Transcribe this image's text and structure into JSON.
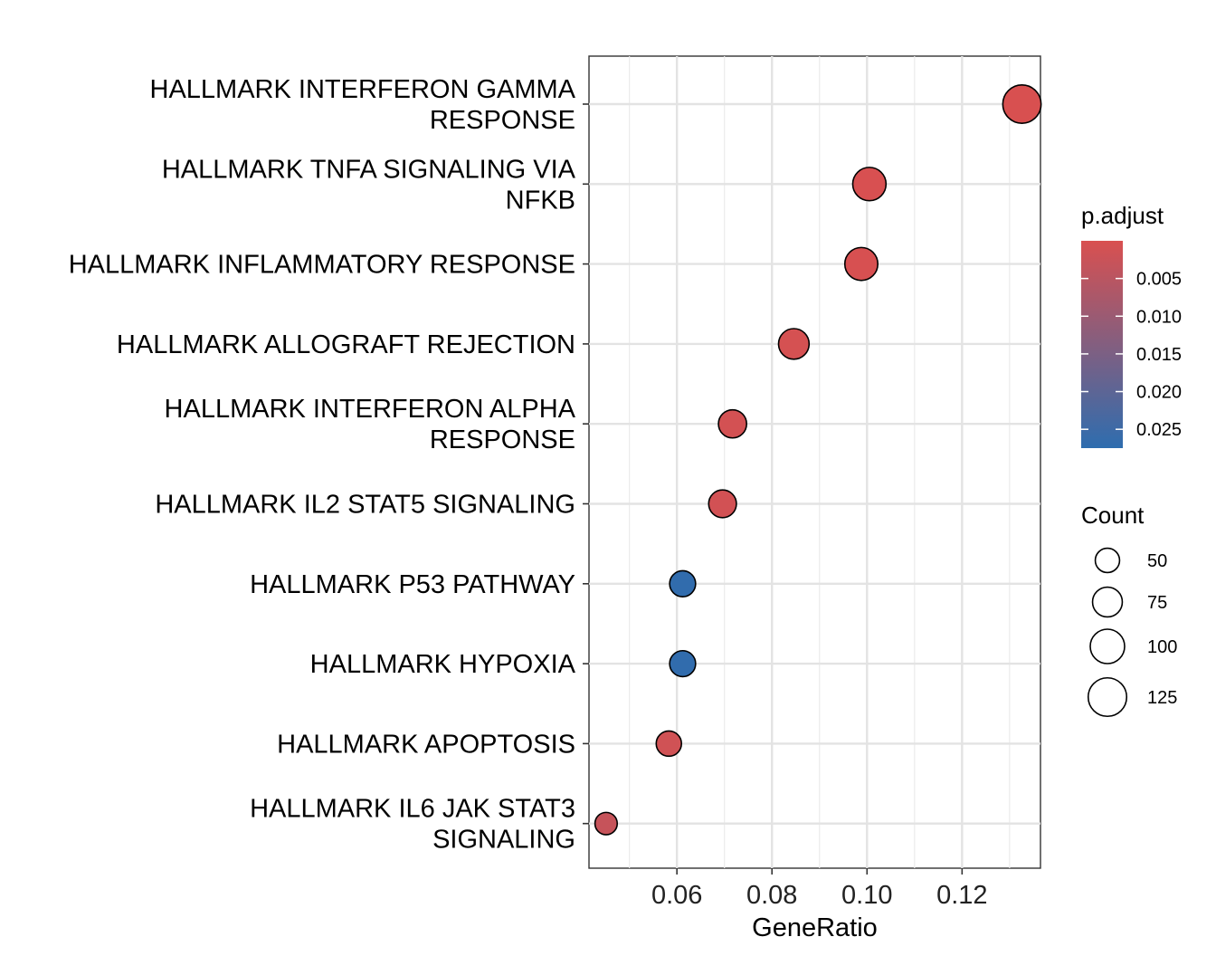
{
  "chart_data": {
    "type": "scatter",
    "subtype": "dot-plot",
    "title": "",
    "xlabel": "GeneRatio",
    "ylabel": "",
    "xlim": [
      0.0415,
      0.1365
    ],
    "xticks": [
      0.06,
      0.08,
      0.1,
      0.12
    ],
    "xtick_labels": [
      "0.06",
      "0.08",
      "0.10",
      "0.12"
    ],
    "grid": true,
    "categories": [
      [
        "HALLMARK INTERFERON GAMMA",
        "RESPONSE"
      ],
      [
        "HALLMARK TNFA SIGNALING VIA",
        "NFKB"
      ],
      [
        "HALLMARK INFLAMMATORY RESPONSE"
      ],
      [
        "HALLMARK ALLOGRAFT REJECTION"
      ],
      [
        "HALLMARK INTERFERON ALPHA",
        "RESPONSE"
      ],
      [
        "HALLMARK IL2 STAT5 SIGNALING"
      ],
      [
        "HALLMARK P53 PATHWAY"
      ],
      [
        "HALLMARK HYPOXIA"
      ],
      [
        "HALLMARK APOPTOSIS"
      ],
      [
        "HALLMARK IL6 JAK STAT3",
        "SIGNALING"
      ]
    ],
    "points": [
      {
        "x": 0.1326,
        "count": 124,
        "p_adjust": 0.0001
      },
      {
        "x": 0.1005,
        "count": 94,
        "p_adjust": 0.0002
      },
      {
        "x": 0.0988,
        "count": 92,
        "p_adjust": 0.0003
      },
      {
        "x": 0.0846,
        "count": 79,
        "p_adjust": 0.0006
      },
      {
        "x": 0.0717,
        "count": 67,
        "p_adjust": 0.001
      },
      {
        "x": 0.0696,
        "count": 65,
        "p_adjust": 0.0012
      },
      {
        "x": 0.0612,
        "count": 57,
        "p_adjust": 0.027
      },
      {
        "x": 0.0612,
        "count": 57,
        "p_adjust": 0.027
      },
      {
        "x": 0.0583,
        "count": 54,
        "p_adjust": 0.0015
      },
      {
        "x": 0.0451,
        "count": 42,
        "p_adjust": 0.003
      }
    ],
    "color_legend": {
      "title": "p.adjust",
      "ticks": [
        0.005,
        0.01,
        0.015,
        0.02,
        0.025
      ],
      "tick_labels": [
        "0.005",
        "0.010",
        "0.015",
        "0.020",
        "0.025"
      ],
      "range": [
        0.0,
        0.0275
      ],
      "low_color": "#D95050",
      "high_color": "#2E6DAF"
    },
    "size_legend": {
      "title": "Count",
      "values": [
        50,
        75,
        100,
        125
      ],
      "labels": [
        "50",
        "75",
        "100",
        "125"
      ]
    },
    "legend_position": "right"
  }
}
